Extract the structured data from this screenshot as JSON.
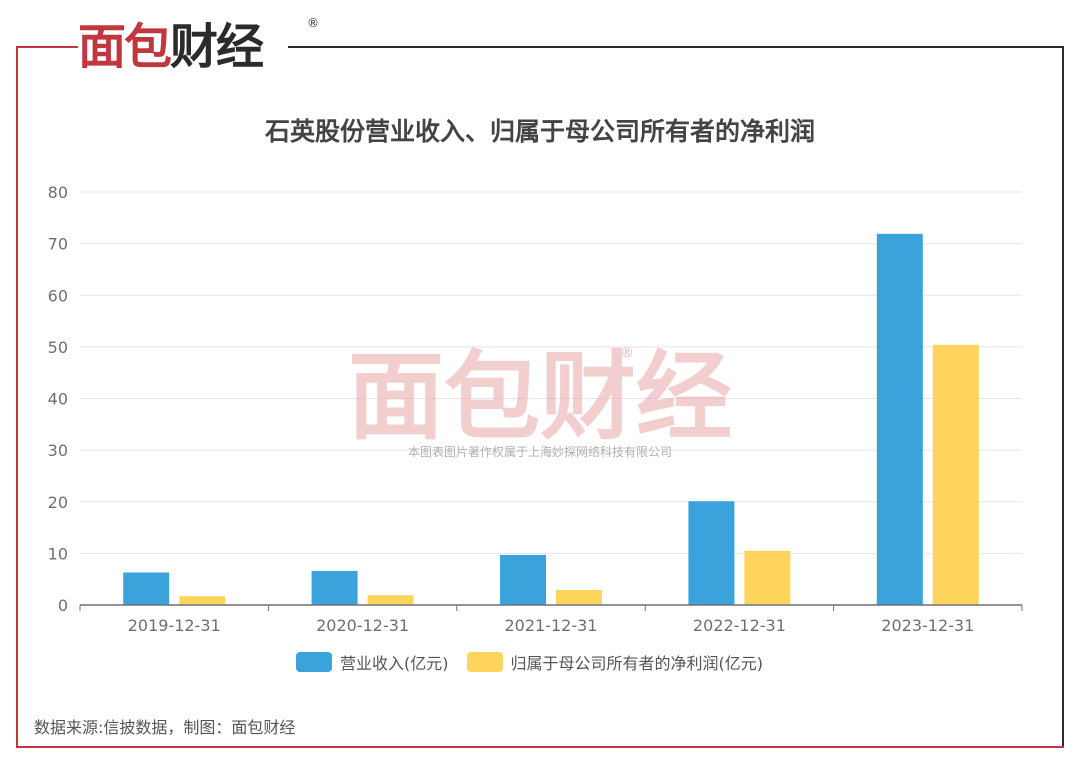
{
  "brand": {
    "logo_text_red": "面包",
    "logo_text_dark": "财经",
    "registered_mark": "®"
  },
  "watermark": {
    "logo_text": "面包财经",
    "registered_mark": "®",
    "copyright": "本图表图片著作权属于上海妙探网络科技有限公司"
  },
  "source": "数据来源:信披数据，制图：面包财经",
  "colors": {
    "revenue": "#3aa3dc",
    "net_profit": "#ffd45c",
    "frame_red": "#c0373f",
    "frame_dark": "#2b2b2b"
  },
  "chart_data": {
    "type": "bar",
    "title": "石英股份营业收入、归属于母公司所有者的净利润",
    "categories": [
      "2019-12-31",
      "2020-12-31",
      "2021-12-31",
      "2022-12-31",
      "2023-12-31"
    ],
    "series": [
      {
        "name": "营业收入(亿元)",
        "values": [
          6.3,
          6.6,
          9.7,
          20.1,
          71.9
        ]
      },
      {
        "name": "归属于母公司所有者的净利润(亿元)",
        "values": [
          1.7,
          1.9,
          2.9,
          10.5,
          50.4
        ]
      }
    ],
    "ylim": [
      0,
      80
    ],
    "yticks": [
      0,
      10,
      20,
      30,
      40,
      50,
      60,
      70,
      80
    ],
    "grid": true,
    "legend_position": "bottom"
  }
}
